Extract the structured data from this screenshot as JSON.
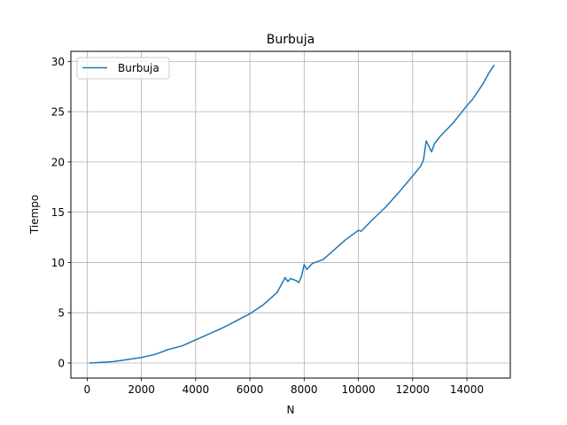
{
  "chart_data": {
    "type": "line",
    "title": "Burbuja",
    "xlabel": "N",
    "ylabel": "Tiempo",
    "xlim": [
      -600,
      15600
    ],
    "ylim": [
      -1.5,
      31
    ],
    "xticks": [
      0,
      2000,
      4000,
      6000,
      8000,
      10000,
      12000,
      14000
    ],
    "xtick_labels": [
      "0",
      "2000",
      "4000",
      "6000",
      "8000",
      "10000",
      "12000",
      "14000"
    ],
    "yticks": [
      0,
      5,
      10,
      15,
      20,
      25,
      30
    ],
    "ytick_labels": [
      "0",
      "5",
      "10",
      "15",
      "20",
      "25",
      "30"
    ],
    "grid": true,
    "legend_position": "top-left",
    "colors": {
      "line": "#1f77b4",
      "grid": "#b0b0b0"
    },
    "series": [
      {
        "name": "Burbuja",
        "x": [
          100,
          500,
          1000,
          1500,
          2000,
          2500,
          3000,
          3500,
          4000,
          4500,
          5000,
          5500,
          6000,
          6500,
          7000,
          7300,
          7400,
          7500,
          7700,
          7800,
          7900,
          8000,
          8100,
          8200,
          8300,
          8500,
          8700,
          9000,
          9500,
          10000,
          10100,
          10500,
          11000,
          11500,
          12000,
          12300,
          12400,
          12500,
          12700,
          12800,
          13000,
          13500,
          14000,
          14200,
          14400,
          14600,
          14800,
          15000
        ],
        "values": [
          0.0,
          0.06,
          0.15,
          0.35,
          0.55,
          0.85,
          1.35,
          1.7,
          2.3,
          2.9,
          3.5,
          4.2,
          4.9,
          5.8,
          7.0,
          8.5,
          8.1,
          8.4,
          8.2,
          8.0,
          8.6,
          9.8,
          9.3,
          9.6,
          9.9,
          10.1,
          10.3,
          11.0,
          12.2,
          13.2,
          13.1,
          14.2,
          15.5,
          17.0,
          18.6,
          19.6,
          20.2,
          22.1,
          21.0,
          21.8,
          22.5,
          23.9,
          25.6,
          26.2,
          27.0,
          27.8,
          28.8,
          29.6
        ]
      }
    ]
  }
}
